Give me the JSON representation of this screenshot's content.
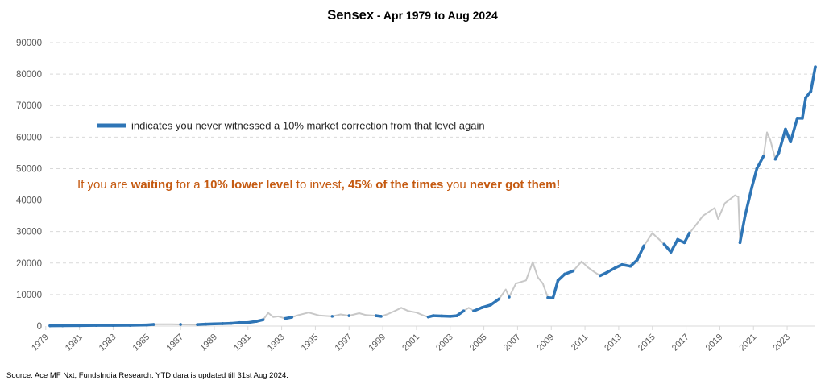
{
  "chart_data": {
    "type": "line",
    "title": "Sensex",
    "title_suffix": " - Apr 1979 to Aug 2024",
    "xlabel": "",
    "ylabel": "",
    "ylim": [
      0,
      90000
    ],
    "yticks": [
      0,
      10000,
      20000,
      30000,
      40000,
      50000,
      60000,
      70000,
      80000,
      90000
    ],
    "xlim": [
      1979.25,
      2024.67
    ],
    "xticks": [
      "1979",
      "1981",
      "1983",
      "1985",
      "1987",
      "1989",
      "1991",
      "1993",
      "1995",
      "1997",
      "1999",
      "2001",
      "2003",
      "2005",
      "2007",
      "2009",
      "2011",
      "2013",
      "2015",
      "2017",
      "2019",
      "2021",
      "2023"
    ],
    "grid": true,
    "legend": {
      "position": "upper-left",
      "label": "indicates you never witnessed a 10% market correction from that level again",
      "color": "#2E75B6"
    },
    "colors": {
      "never_corrected": "#2E75B6",
      "corrected": "#C8C8C8"
    },
    "series": [
      {
        "name": "Sensex",
        "note": "flag 1 = blue (never saw a 10% correction from that level again), 0 = grey",
        "points": [
          [
            1979.25,
            100,
            1
          ],
          [
            1980.0,
            130,
            1
          ],
          [
            1981.0,
            170,
            1
          ],
          [
            1982.0,
            210,
            1
          ],
          [
            1983.0,
            220,
            1
          ],
          [
            1984.0,
            250,
            1
          ],
          [
            1985.0,
            350,
            1
          ],
          [
            1985.4,
            500,
            1
          ],
          [
            1985.6,
            580,
            0
          ],
          [
            1986.0,
            560,
            0
          ],
          [
            1986.5,
            600,
            0
          ],
          [
            1987.0,
            520,
            1
          ],
          [
            1987.5,
            480,
            0
          ],
          [
            1988.0,
            470,
            1
          ],
          [
            1988.5,
            600,
            1
          ],
          [
            1989.0,
            700,
            1
          ],
          [
            1989.5,
            780,
            1
          ],
          [
            1990.0,
            850,
            1
          ],
          [
            1990.5,
            1100,
            1
          ],
          [
            1991.0,
            1100,
            1
          ],
          [
            1991.5,
            1500,
            1
          ],
          [
            1991.9,
            2000,
            1
          ],
          [
            1992.2,
            4200,
            0
          ],
          [
            1992.5,
            2900,
            0
          ],
          [
            1992.8,
            3100,
            0
          ],
          [
            1993.2,
            2400,
            1
          ],
          [
            1993.6,
            2800,
            1
          ],
          [
            1994.0,
            3500,
            0
          ],
          [
            1994.6,
            4300,
            0
          ],
          [
            1995.2,
            3400,
            0
          ],
          [
            1995.7,
            3200,
            0
          ],
          [
            1996.0,
            3100,
            1
          ],
          [
            1996.5,
            3700,
            0
          ],
          [
            1997.0,
            3300,
            1
          ],
          [
            1997.6,
            4100,
            0
          ],
          [
            1998.0,
            3500,
            0
          ],
          [
            1998.6,
            3300,
            1
          ],
          [
            1998.9,
            3100,
            1
          ],
          [
            1999.3,
            3800,
            0
          ],
          [
            1999.8,
            5000,
            0
          ],
          [
            2000.1,
            5800,
            0
          ],
          [
            2000.5,
            4800,
            0
          ],
          [
            2001.0,
            4300,
            0
          ],
          [
            2001.4,
            3400,
            0
          ],
          [
            2001.7,
            2900,
            1
          ],
          [
            2002.0,
            3300,
            1
          ],
          [
            2002.5,
            3200,
            1
          ],
          [
            2003.0,
            3100,
            1
          ],
          [
            2003.4,
            3300,
            1
          ],
          [
            2003.8,
            4800,
            1
          ],
          [
            2004.1,
            5800,
            0
          ],
          [
            2004.4,
            4800,
            1
          ],
          [
            2004.9,
            5900,
            1
          ],
          [
            2005.4,
            6700,
            1
          ],
          [
            2005.9,
            8600,
            1
          ],
          [
            2006.3,
            11600,
            0
          ],
          [
            2006.5,
            9200,
            1
          ],
          [
            2006.9,
            13500,
            0
          ],
          [
            2007.5,
            14500,
            0
          ],
          [
            2007.9,
            20300,
            0
          ],
          [
            2008.2,
            15500,
            0
          ],
          [
            2008.5,
            13500,
            0
          ],
          [
            2008.8,
            9000,
            1
          ],
          [
            2009.1,
            8900,
            1
          ],
          [
            2009.4,
            14500,
            1
          ],
          [
            2009.8,
            16500,
            1
          ],
          [
            2010.3,
            17500,
            1
          ],
          [
            2010.8,
            20500,
            0
          ],
          [
            2011.2,
            18500,
            0
          ],
          [
            2011.6,
            17000,
            0
          ],
          [
            2011.9,
            16000,
            1
          ],
          [
            2012.3,
            17000,
            1
          ],
          [
            2012.8,
            18500,
            1
          ],
          [
            2013.2,
            19500,
            1
          ],
          [
            2013.7,
            19000,
            1
          ],
          [
            2014.1,
            21000,
            1
          ],
          [
            2014.5,
            25500,
            1
          ],
          [
            2015.0,
            29500,
            0
          ],
          [
            2015.4,
            27500,
            0
          ],
          [
            2015.7,
            26000,
            1
          ],
          [
            2016.1,
            23500,
            1
          ],
          [
            2016.5,
            27500,
            1
          ],
          [
            2016.9,
            26500,
            1
          ],
          [
            2017.2,
            29500,
            1
          ],
          [
            2017.5,
            31500,
            0
          ],
          [
            2018.0,
            35000,
            0
          ],
          [
            2018.7,
            37500,
            0
          ],
          [
            2018.9,
            34000,
            0
          ],
          [
            2019.3,
            39000,
            0
          ],
          [
            2019.9,
            41500,
            0
          ],
          [
            2020.1,
            41000,
            0
          ],
          [
            2020.2,
            26500,
            1
          ],
          [
            2020.5,
            35000,
            1
          ],
          [
            2020.9,
            44000,
            1
          ],
          [
            2021.2,
            50000,
            1
          ],
          [
            2021.6,
            54000,
            1
          ],
          [
            2021.8,
            61500,
            0
          ],
          [
            2022.0,
            59000,
            0
          ],
          [
            2022.3,
            53000,
            1
          ],
          [
            2022.5,
            55000,
            1
          ],
          [
            2022.9,
            62500,
            1
          ],
          [
            2023.2,
            58500,
            1
          ],
          [
            2023.6,
            66000,
            1
          ],
          [
            2023.9,
            66000,
            1
          ],
          [
            2024.1,
            72500,
            1
          ],
          [
            2024.4,
            74500,
            1
          ],
          [
            2024.67,
            82300,
            1
          ]
        ]
      }
    ]
  },
  "callout": {
    "parts": [
      {
        "text": "If you are ",
        "bold": false
      },
      {
        "text": "waiting",
        "bold": true
      },
      {
        "text": " for a ",
        "bold": false
      },
      {
        "text": "10% lower level",
        "bold": true
      },
      {
        "text": " to invest",
        "bold": false
      },
      {
        "text": ", 45% of the times",
        "bold": true
      },
      {
        "text": " you ",
        "bold": false
      },
      {
        "text": "never got them!",
        "bold": true
      }
    ],
    "color": "#C55A11"
  },
  "source": "Source: Ace MF Nxt, FundsIndia Research. YTD dara is updated till 31st Aug 2024."
}
